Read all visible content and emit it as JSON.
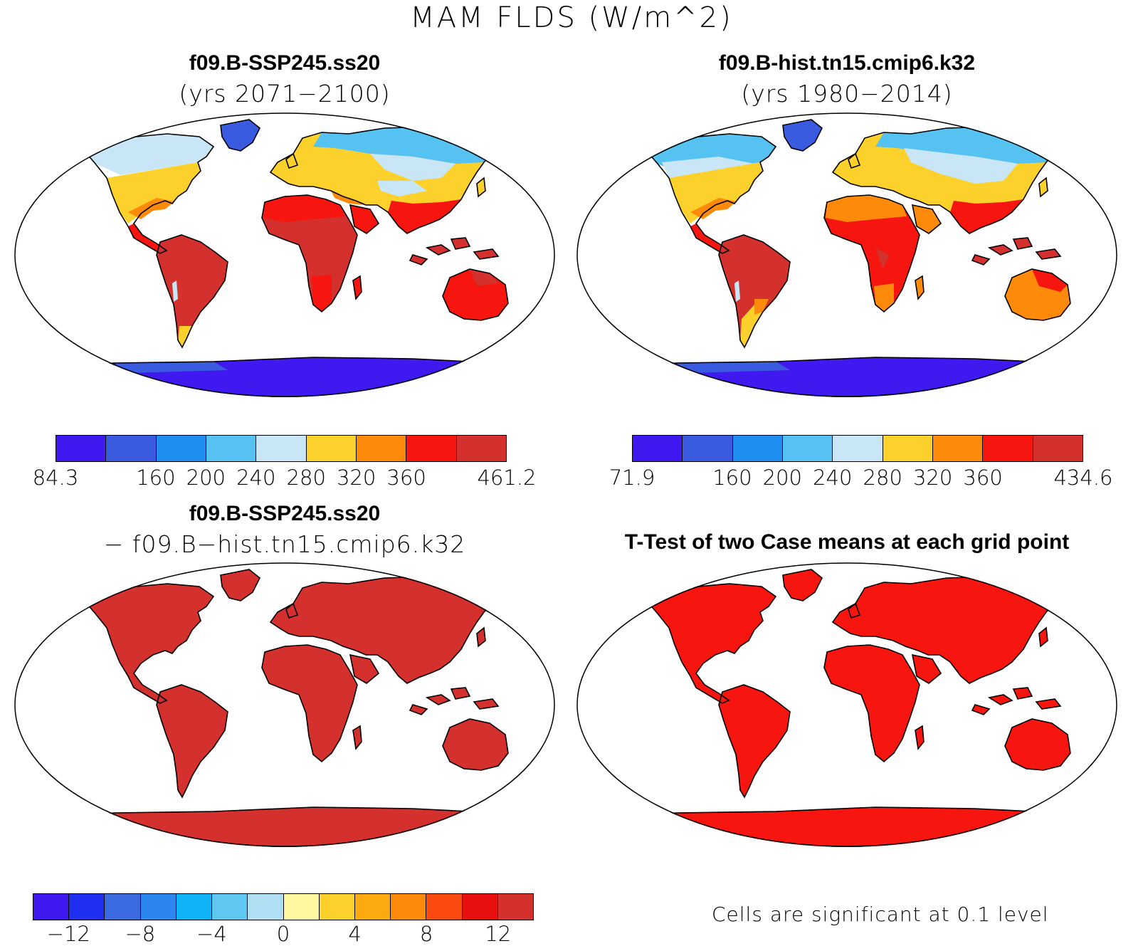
{
  "figure_title": "MAM FLDS (W/m^2)",
  "panels": [
    {
      "id": "ssp",
      "title": "f09.B-SSP245.ss20",
      "subtitle": "(yrs 2071−2100)"
    },
    {
      "id": "hist",
      "title": "f09.B-hist.tn15.cmip6.k32",
      "subtitle": "(yrs 1980−2014)"
    },
    {
      "id": "diff",
      "title": "f09.B-SSP245.ss20",
      "subtitle": "− f09.B−hist.tn15.cmip6.k32"
    },
    {
      "id": "ttest",
      "title": "T-Test of two Case means at each grid point",
      "note": "Cells are significant at 0.1 level"
    }
  ],
  "colorbars": {
    "ssp": {
      "colors": [
        "#3f19f0",
        "#3a5be0",
        "#1f8ef0",
        "#55c2f2",
        "#c8e6f5",
        "#fdd12b",
        "#fd8a0b",
        "#f7150f",
        "#d3302e"
      ],
      "labels": [
        "84.3",
        "160",
        "200",
        "240",
        "280",
        "320",
        "360",
        "461.2"
      ]
    },
    "hist": {
      "colors": [
        "#3f19f0",
        "#3a5be0",
        "#1f8ef0",
        "#55c2f2",
        "#c8e6f5",
        "#fdd12b",
        "#fd8a0b",
        "#f7150f",
        "#d3302e"
      ],
      "labels": [
        "71.9",
        "160",
        "200",
        "240",
        "280",
        "320",
        "360",
        "434.6"
      ]
    },
    "diff": {
      "colors": [
        "#3f19f0",
        "#1e2ff0",
        "#3a6be0",
        "#2b86f0",
        "#0fb2f5",
        "#5ec8f2",
        "#b0def2",
        "#fdf8a0",
        "#fdd12b",
        "#fdaa10",
        "#fd8a0b",
        "#fb4a10",
        "#e8100f",
        "#d3302e"
      ],
      "labels": [
        "−12",
        "−8",
        "−4",
        "0",
        "4",
        "8",
        "12"
      ]
    }
  },
  "map_fill": {
    "diff_land": "#d3302e",
    "ttest_land": "#f7150f"
  }
}
